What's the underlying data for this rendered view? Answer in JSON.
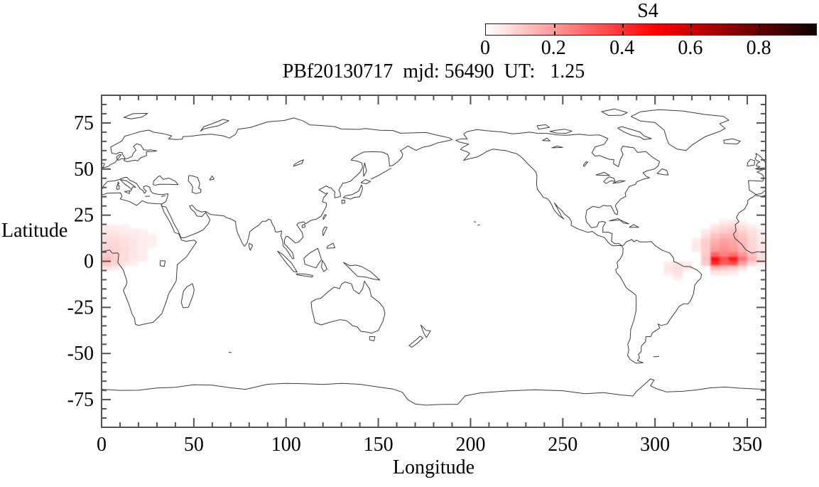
{
  "chart_data": {
    "type": "heatmap",
    "title": "PBf20130717  mjd: 56490  UT:   1.25",
    "xlabel": "Longitude",
    "ylabel": "Latitude",
    "xlim": [
      0,
      360
    ],
    "ylim": [
      -90,
      90
    ],
    "x_major_ticks": [
      0,
      50,
      100,
      150,
      200,
      250,
      300,
      350
    ],
    "x_minor_tick_step": 10,
    "y_major_ticks": [
      75,
      50,
      25,
      0,
      -25,
      -50,
      -75
    ],
    "y_minor_tick_step": 5,
    "grid": false,
    "background": "world-coastline-outline-map",
    "colorbar": {
      "label": "S4",
      "range": [
        0,
        0.97
      ],
      "tick_values": [
        0,
        0.2,
        0.4,
        0.6,
        0.8
      ],
      "tick_labels": [
        "0",
        "0.2",
        "0.4",
        "0.6",
        "0.8"
      ],
      "colormap": [
        "#ffffff",
        "#ff0000",
        "#000000"
      ],
      "position": "top-right-horizontal"
    },
    "cell_size_deg": {
      "lon": 5,
      "lat": 2.5
    },
    "cells": [
      [
        0,
        17.5,
        0.04
      ],
      [
        5,
        17.5,
        0.04
      ],
      [
        10,
        17.5,
        0.03
      ],
      [
        0,
        15,
        0.05
      ],
      [
        5,
        15,
        0.05
      ],
      [
        10,
        15,
        0.04
      ],
      [
        15,
        15,
        0.04
      ],
      [
        20,
        15,
        0.03
      ],
      [
        0,
        12.5,
        0.06
      ],
      [
        5,
        12.5,
        0.06
      ],
      [
        10,
        12.5,
        0.05
      ],
      [
        15,
        12.5,
        0.05
      ],
      [
        20,
        12.5,
        0.04
      ],
      [
        25,
        12.5,
        0.03
      ],
      [
        0,
        10,
        0.07
      ],
      [
        5,
        10,
        0.07
      ],
      [
        10,
        10,
        0.06
      ],
      [
        15,
        10,
        0.05
      ],
      [
        20,
        10,
        0.04
      ],
      [
        25,
        10,
        0.03
      ],
      [
        0,
        7.5,
        0.08
      ],
      [
        5,
        7.5,
        0.08
      ],
      [
        10,
        7.5,
        0.06
      ],
      [
        15,
        7.5,
        0.05
      ],
      [
        20,
        7.5,
        0.04
      ],
      [
        25,
        7.5,
        0.03
      ],
      [
        0,
        5,
        0.09
      ],
      [
        5,
        5,
        0.08
      ],
      [
        10,
        5,
        0.07
      ],
      [
        15,
        5,
        0.05
      ],
      [
        20,
        5,
        0.04
      ],
      [
        0,
        2.5,
        0.1
      ],
      [
        5,
        2.5,
        0.09
      ],
      [
        10,
        2.5,
        0.07
      ],
      [
        15,
        2.5,
        0.05
      ],
      [
        20,
        2.5,
        0.04
      ],
      [
        0,
        0,
        0.13
      ],
      [
        5,
        0,
        0.1
      ],
      [
        10,
        0,
        0.07
      ],
      [
        15,
        0,
        0.05
      ],
      [
        20,
        0,
        0.04
      ],
      [
        0,
        -2.5,
        0.12
      ],
      [
        5,
        -2.5,
        0.08
      ],
      [
        10,
        -2.5,
        0.05
      ],
      [
        15,
        -2.5,
        0.03
      ],
      [
        0,
        -5,
        0.06
      ],
      [
        5,
        -5,
        0.04
      ],
      [
        305,
        -2.5,
        0.04
      ],
      [
        310,
        -2.5,
        0.05
      ],
      [
        315,
        -2.5,
        0.04
      ],
      [
        305,
        -5,
        0.05
      ],
      [
        310,
        -5,
        0.07
      ],
      [
        315,
        -5,
        0.05
      ],
      [
        305,
        -7.5,
        0.04
      ],
      [
        310,
        -7.5,
        0.06
      ],
      [
        310,
        -10,
        0.04
      ],
      [
        335,
        20,
        0.04
      ],
      [
        340,
        20,
        0.05
      ],
      [
        345,
        20,
        0.03
      ],
      [
        330,
        17.5,
        0.05
      ],
      [
        335,
        17.5,
        0.07
      ],
      [
        340,
        17.5,
        0.08
      ],
      [
        345,
        17.5,
        0.06
      ],
      [
        350,
        17.5,
        0.04
      ],
      [
        325,
        15,
        0.04
      ],
      [
        330,
        15,
        0.08
      ],
      [
        335,
        15,
        0.1
      ],
      [
        340,
        15,
        0.12
      ],
      [
        345,
        15,
        0.09
      ],
      [
        350,
        15,
        0.06
      ],
      [
        355,
        15,
        0.04
      ],
      [
        325,
        12.5,
        0.06
      ],
      [
        330,
        12.5,
        0.12
      ],
      [
        335,
        12.5,
        0.15
      ],
      [
        340,
        12.5,
        0.15
      ],
      [
        345,
        12.5,
        0.12
      ],
      [
        350,
        12.5,
        0.07
      ],
      [
        355,
        12.5,
        0.04
      ],
      [
        320,
        10,
        0.04
      ],
      [
        325,
        10,
        0.09
      ],
      [
        330,
        10,
        0.15
      ],
      [
        335,
        10,
        0.18
      ],
      [
        340,
        10,
        0.17
      ],
      [
        345,
        10,
        0.13
      ],
      [
        350,
        10,
        0.08
      ],
      [
        355,
        10,
        0.04
      ],
      [
        320,
        7.5,
        0.05
      ],
      [
        325,
        7.5,
        0.1
      ],
      [
        330,
        7.5,
        0.17
      ],
      [
        335,
        7.5,
        0.2
      ],
      [
        340,
        7.5,
        0.18
      ],
      [
        345,
        7.5,
        0.14
      ],
      [
        350,
        7.5,
        0.08
      ],
      [
        355,
        7.5,
        0.05
      ],
      [
        320,
        5,
        0.04
      ],
      [
        325,
        5,
        0.1
      ],
      [
        330,
        5,
        0.2
      ],
      [
        335,
        5,
        0.22
      ],
      [
        340,
        5,
        0.2
      ],
      [
        345,
        5,
        0.15
      ],
      [
        350,
        5,
        0.09
      ],
      [
        355,
        5,
        0.05
      ],
      [
        325,
        2.5,
        0.1
      ],
      [
        330,
        2.5,
        0.3
      ],
      [
        335,
        2.5,
        0.25
      ],
      [
        340,
        2.5,
        0.28
      ],
      [
        345,
        2.5,
        0.2
      ],
      [
        350,
        2.5,
        0.12
      ],
      [
        355,
        2.5,
        0.06
      ],
      [
        325,
        0,
        0.12
      ],
      [
        330,
        0,
        0.47
      ],
      [
        335,
        0,
        0.35
      ],
      [
        340,
        0,
        0.45
      ],
      [
        345,
        0,
        0.28
      ],
      [
        350,
        0,
        0.15
      ],
      [
        355,
        0,
        0.07
      ],
      [
        325,
        -2.5,
        0.1
      ],
      [
        330,
        -2.5,
        0.42
      ],
      [
        335,
        -2.5,
        0.32
      ],
      [
        340,
        -2.5,
        0.35
      ],
      [
        345,
        -2.5,
        0.18
      ],
      [
        350,
        -2.5,
        0.08
      ],
      [
        355,
        -2.5,
        0.04
      ],
      [
        330,
        -5,
        0.14
      ],
      [
        335,
        -5,
        0.12
      ],
      [
        340,
        -5,
        0.1
      ],
      [
        345,
        -5,
        0.06
      ],
      [
        330,
        -7.5,
        0.05
      ],
      [
        335,
        -7.5,
        0.05
      ],
      [
        340,
        -7.5,
        0.04
      ]
    ]
  }
}
